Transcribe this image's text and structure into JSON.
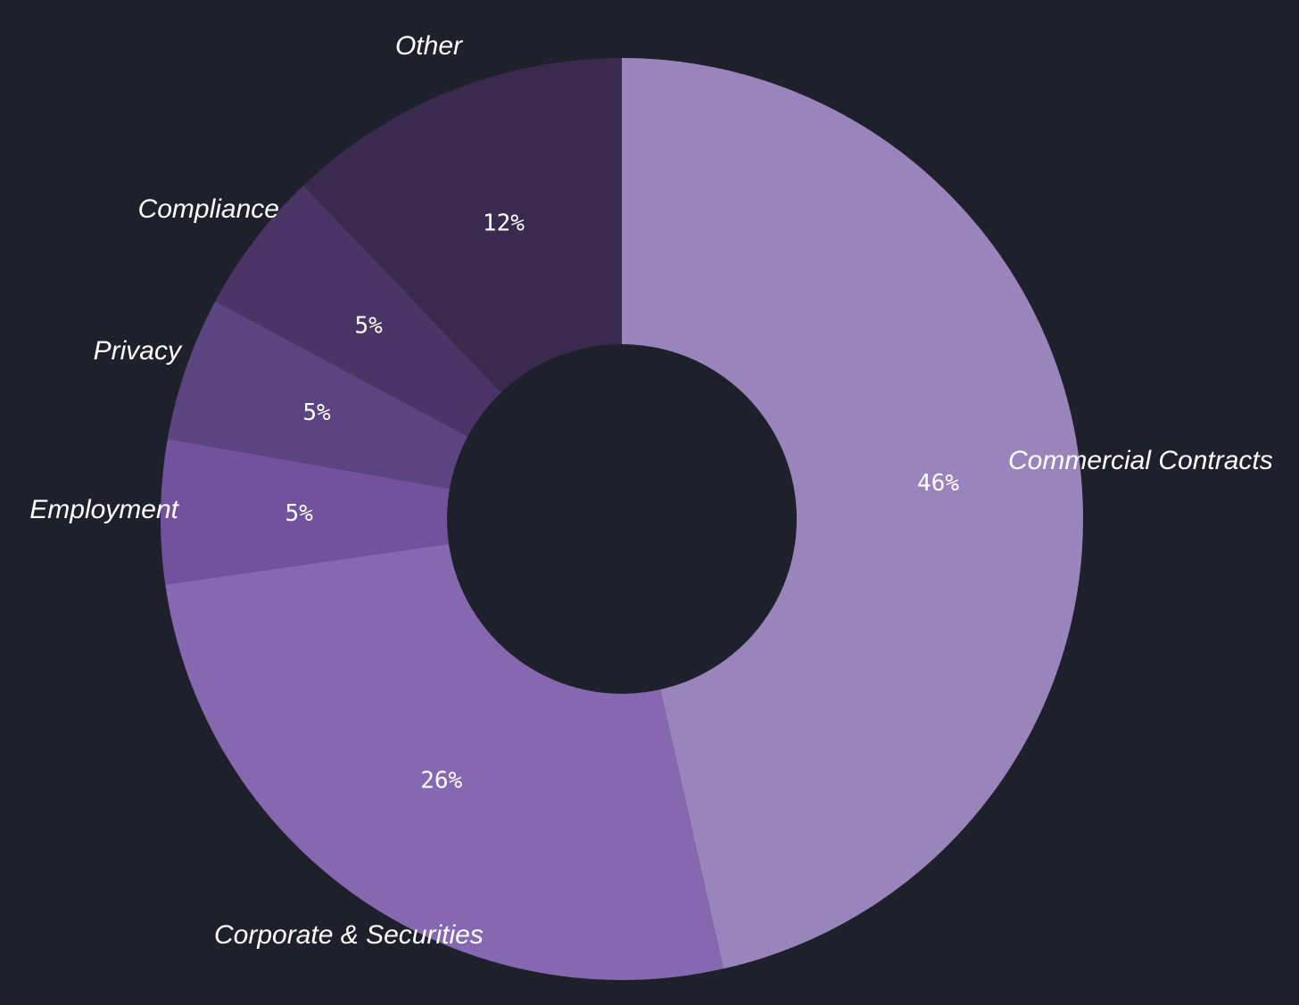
{
  "background_color": "#1e202b",
  "chart_data": {
    "type": "pie",
    "variant": "donut",
    "title": "",
    "legend": "none",
    "slices": [
      {
        "name": "Commercial Contracts",
        "value": 46,
        "label": "46%",
        "color": "#9a84bc"
      },
      {
        "name": "Corporate & Securities",
        "value": 26,
        "label": "26%",
        "color": "#8668b0"
      },
      {
        "name": "Employment",
        "value": 5,
        "label": "5%",
        "color": "#72529c"
      },
      {
        "name": "Privacy",
        "value": 5,
        "label": "5%",
        "color": "#5c4480"
      },
      {
        "name": "Compliance",
        "value": 5,
        "label": "5%",
        "color": "#4a3566"
      },
      {
        "name": "Other",
        "value": 12,
        "label": "12%",
        "color": "#3a2a4e"
      }
    ]
  }
}
